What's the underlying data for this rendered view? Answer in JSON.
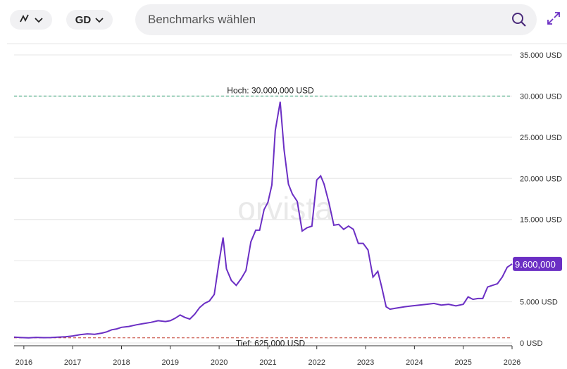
{
  "controls": {
    "chart_type_icon": "line-chart-icon",
    "currency": "GD",
    "search_placeholder": "Benchmarks wählen",
    "expand_icon": "expand-icon"
  },
  "colors": {
    "line": "#6b2fc4",
    "high": "#2a9d6f",
    "low": "#c0392b",
    "accent": "#6b2fc4"
  },
  "watermark": "orvista",
  "chart_data": {
    "type": "line",
    "currency": "USD",
    "ylim": [
      0,
      35000000
    ],
    "yticks": [
      0,
      5000000,
      10000000,
      15000000,
      20000000,
      25000000,
      30000000,
      35000000
    ],
    "ytick_labels": [
      "0 USD",
      "5.000 USD",
      "10.000 USD",
      "15.000 USD",
      "20.000 USD",
      "25.000 USD",
      "30.000 USD",
      "35.000 USD"
    ],
    "xlim": [
      2015.8,
      2026.0
    ],
    "xticks": [
      2016,
      2017,
      2018,
      2019,
      2020,
      2021,
      2022,
      2023,
      2024,
      2025,
      2026
    ],
    "xtick_labels": [
      "2016",
      "2017",
      "2018",
      "2019",
      "2020",
      "2021",
      "2022",
      "2023",
      "2024",
      "2025",
      "2026"
    ],
    "high": {
      "value": 30000000,
      "label": "Hoch: 30.000,000 USD"
    },
    "low": {
      "value": 625000,
      "label": "Tief: 625,000 USD"
    },
    "last": {
      "value": 9600000,
      "label": "9.600,000"
    },
    "series": [
      {
        "x": [
          2015.8,
          2015.95,
          2016.1,
          2016.25,
          2016.4,
          2016.55,
          2016.7,
          2016.85,
          2017.0,
          2017.15,
          2017.3,
          2017.45,
          2017.6,
          2017.7,
          2017.8,
          2017.9,
          2018.0,
          2018.15,
          2018.3,
          2018.45,
          2018.6,
          2018.75,
          2018.9,
          2019.0,
          2019.1,
          2019.2,
          2019.3,
          2019.4,
          2019.5,
          2019.6,
          2019.7,
          2019.8,
          2019.9,
          2020.0,
          2020.08,
          2020.15,
          2020.25,
          2020.35,
          2020.45,
          2020.55,
          2020.65,
          2020.75,
          2020.83,
          2020.92,
          2021.0,
          2021.08,
          2021.15,
          2021.25,
          2021.33,
          2021.42,
          2021.5,
          2021.6,
          2021.7,
          2021.8,
          2021.9,
          2022.0,
          2022.08,
          2022.15,
          2022.25,
          2022.35,
          2022.45,
          2022.55,
          2022.65,
          2022.75,
          2022.85,
          2022.95,
          2023.05,
          2023.15,
          2023.25,
          2023.33,
          2023.42,
          2023.5,
          2023.6,
          2023.7,
          2023.8,
          2023.95,
          2024.1,
          2024.25,
          2024.4,
          2024.55,
          2024.7,
          2024.85,
          2025.0,
          2025.1,
          2025.2,
          2025.3,
          2025.4,
          2025.5,
          2025.6,
          2025.7,
          2025.8,
          2025.9,
          2026.0
        ],
        "y": [
          700000,
          650000,
          620000,
          680000,
          640000,
          650000,
          700000,
          750000,
          850000,
          1000000,
          1100000,
          1050000,
          1200000,
          1350000,
          1600000,
          1700000,
          1900000,
          2000000,
          2200000,
          2350000,
          2500000,
          2700000,
          2600000,
          2700000,
          3000000,
          3400000,
          3100000,
          2900000,
          3500000,
          4300000,
          4800000,
          5100000,
          5900000,
          9900000,
          12800000,
          9000000,
          7600000,
          7000000,
          7800000,
          8800000,
          12300000,
          13700000,
          13700000,
          16200000,
          17100000,
          19200000,
          25800000,
          29300000,
          23500000,
          19300000,
          18100000,
          17200000,
          13600000,
          14000000,
          14200000,
          19800000,
          20300000,
          19300000,
          17000000,
          14300000,
          14400000,
          13800000,
          14200000,
          13800000,
          12100000,
          12100000,
          11300000,
          8000000,
          8700000,
          6800000,
          4400000,
          4100000,
          4200000,
          4300000,
          4400000,
          4500000,
          4600000,
          4700000,
          4800000,
          4600000,
          4700000,
          4500000,
          4700000,
          5600000,
          5300000,
          5400000,
          5400000,
          6800000,
          7000000,
          7200000,
          8000000,
          9200000,
          9600000
        ]
      }
    ]
  }
}
